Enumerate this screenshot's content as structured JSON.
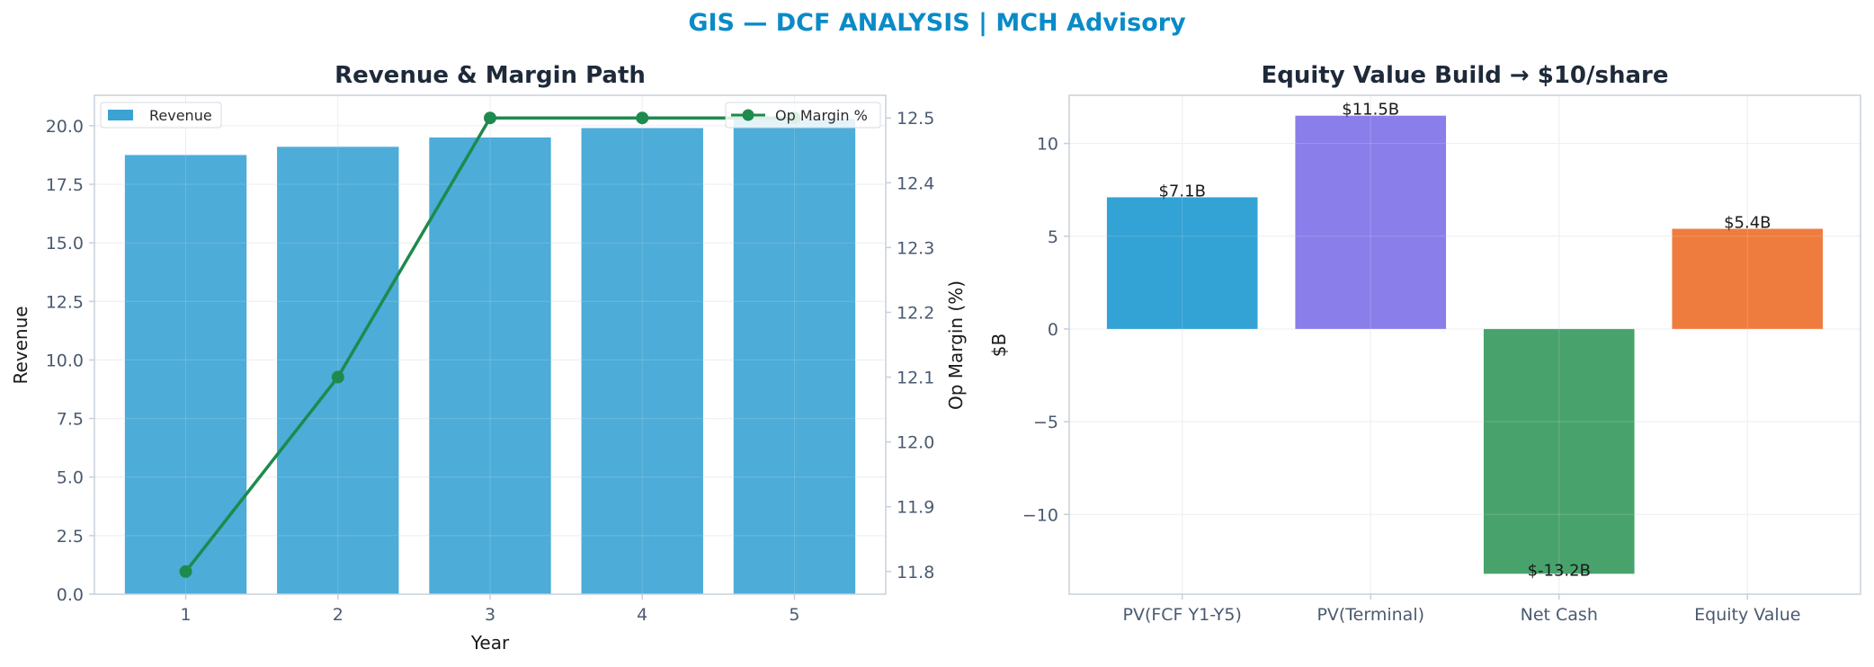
{
  "suptitle": "GIS — DCF ANALYSIS | MCH Advisory",
  "colors": {
    "suptitle": "#0a8bc7",
    "title": "#1e2a3a",
    "tick": "#4a5a70",
    "label": "#1a1a1a",
    "grid": "#e6ebf0",
    "spine": "#c8d0da",
    "revenue_bar": "#3aa3d4",
    "margin_line": "#1e8a4e"
  },
  "chart_data": [
    {
      "type": "bar",
      "title": "Revenue & Margin Path",
      "xlabel": "Year",
      "ylabel": "Revenue",
      "y2label": "Op Margin (%)",
      "categories": [
        "1",
        "2",
        "3",
        "4",
        "5"
      ],
      "ylim": [
        0,
        21.3
      ],
      "yticks": [
        0.0,
        2.5,
        5.0,
        7.5,
        10.0,
        12.5,
        15.0,
        17.5,
        20.0
      ],
      "y2lim": [
        11.765,
        12.535
      ],
      "y2ticks": [
        11.8,
        11.9,
        12.0,
        12.1,
        12.2,
        12.3,
        12.4,
        12.5
      ],
      "grid": true,
      "series": [
        {
          "name": "Revenue",
          "kind": "bar",
          "axis": "left",
          "values": [
            18.75,
            19.1,
            19.5,
            19.9,
            20.3
          ]
        },
        {
          "name": "Op Margin %",
          "kind": "line",
          "axis": "right",
          "values": [
            11.8,
            12.1,
            12.5,
            12.5,
            12.5
          ]
        }
      ],
      "legend": [
        {
          "name": "Revenue",
          "placement": "top-left"
        },
        {
          "name": "Op Margin %",
          "placement": "top-right"
        }
      ]
    },
    {
      "type": "bar",
      "title": "Equity Value Build → $10/share",
      "xlabel": "",
      "ylabel": "$B",
      "categories": [
        "PV(FCF Y1-Y5)",
        "PV(Terminal)",
        "Net Cash",
        "Equity Value"
      ],
      "values": [
        7.1,
        11.5,
        -13.2,
        5.4
      ],
      "labels": [
        "$7.1B",
        "$11.5B",
        "$-13.2B",
        "$5.4B"
      ],
      "colors": [
        "#33a2d4",
        "#8a7eea",
        "#48a26c",
        "#ee7c3e"
      ],
      "ylim": [
        -14.3,
        12.6
      ],
      "yticks": [
        -10,
        -5,
        0,
        5,
        10
      ],
      "grid": true
    }
  ]
}
